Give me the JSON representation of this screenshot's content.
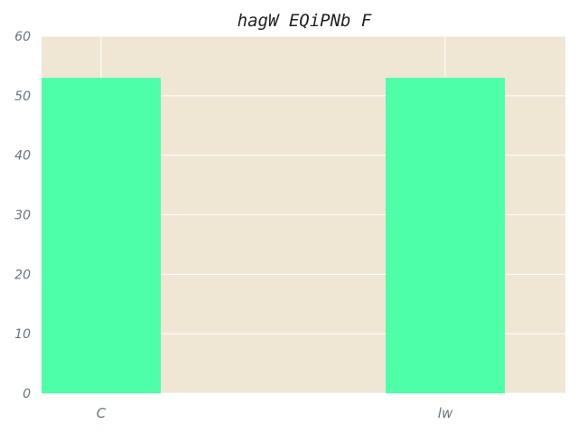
{
  "chart_data": {
    "type": "bar",
    "title": "hagW EQiPNb F",
    "categories": [
      "C",
      "lw"
    ],
    "values": [
      53,
      53
    ],
    "ylim": [
      0,
      60
    ],
    "yticks": [
      0,
      10,
      20,
      30,
      40,
      50,
      60
    ],
    "xlabel": "",
    "ylabel": "",
    "grid": true,
    "legend": "none",
    "colors": {
      "bar": "#4dffa6",
      "plot_background": "#efe7d4",
      "grid": "#ffffff",
      "tick_label": "#66767f",
      "title": "#222222"
    }
  }
}
